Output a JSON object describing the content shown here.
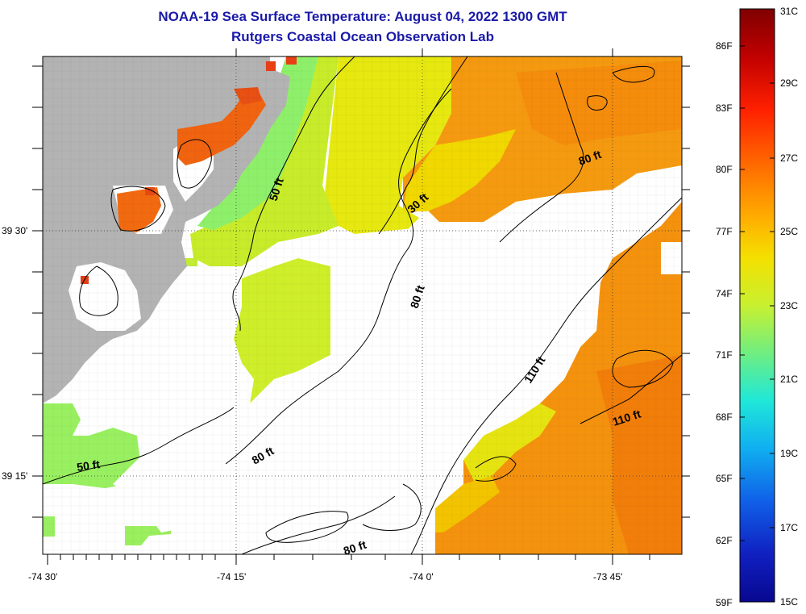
{
  "title": "NOAA-19 Sea Surface Temperature:  August 04, 2022 1300 GMT",
  "subtitle": "Rutgers Coastal Ocean Observation Lab",
  "map": {
    "lat_labels": [
      "39 30'",
      "39 15'"
    ],
    "lon_labels": [
      "-74 30'",
      "-74 15'",
      "-74 0'",
      "-73 45'"
    ],
    "contour_labels": [
      "50 ft",
      "30 ft",
      "80 ft",
      "80 ft",
      "110 ft",
      "110 ft",
      "80 ft",
      "50 ft",
      "80 ft"
    ],
    "colors": {
      "land": "#b3b3b3",
      "cloud": "#ffffff",
      "contour": "#000000"
    }
  },
  "color_scale": {
    "fahrenheit_labels": [
      "86F",
      "83F",
      "80F",
      "77F",
      "74F",
      "71F",
      "68F",
      "65F",
      "62F",
      "59F"
    ],
    "celsius_labels": [
      "31C",
      "29C",
      "27C",
      "25C",
      "23C",
      "21C",
      "19C",
      "17C",
      "15C"
    ],
    "gradient": [
      "#800000",
      "#d40000",
      "#ff2a00",
      "#ff7a00",
      "#ffb000",
      "#f2e600",
      "#d4f21e",
      "#96f060",
      "#3ef0b0",
      "#10d8f0",
      "#1090f0",
      "#1040d0",
      "#0a0a9a"
    ]
  }
}
